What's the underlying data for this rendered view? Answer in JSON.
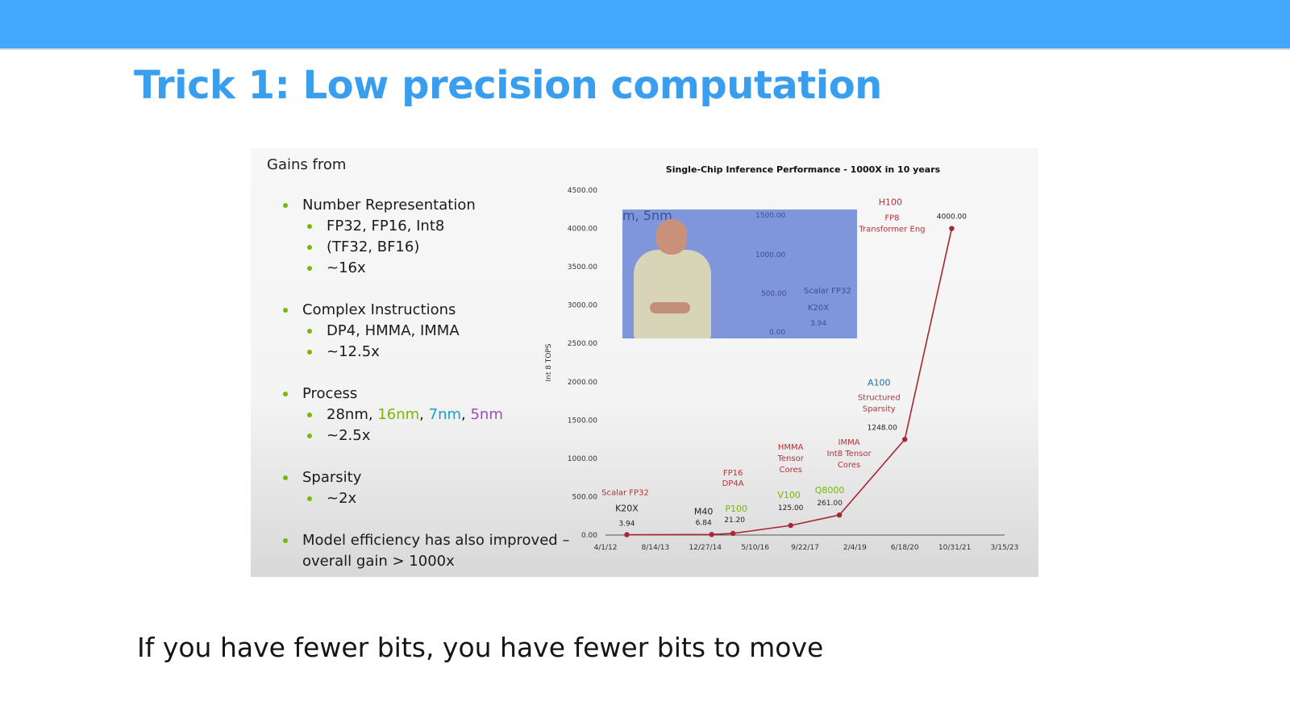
{
  "slide": {
    "title": "Trick 1: Low precision computation",
    "caption": "If you have fewer bits, you have fewer bits to move"
  },
  "colors": {
    "header_bar": "#42a7fd",
    "title": "#3a9eef",
    "bullet": "#76b900",
    "line": "#a8262f",
    "red_label": "#b7313a",
    "green_label": "#76b900",
    "blue_label": "#1f6ea6"
  },
  "panel": {
    "heading": "Gains from",
    "groups": [
      {
        "label": "Number Representation",
        "items": [
          "FP32, FP16, Int8",
          "(TF32, BF16)",
          "~16x"
        ]
      },
      {
        "label": "Complex Instructions",
        "items": [
          "DP4, HMMA, IMMA",
          "~12.5x"
        ]
      },
      {
        "label": "Process",
        "items": [
          "28nm, 16nm, 7nm, 5nm",
          "~2.5x"
        ]
      },
      {
        "label": "Sparsity",
        "items": [
          "~2x"
        ]
      },
      {
        "label": "Model efficiency has also improved –",
        "label2": "overall gain > 1000x",
        "items": []
      }
    ],
    "process_parts": [
      "28nm",
      "16nm",
      "7nm",
      "5nm"
    ]
  },
  "video": {
    "frag_text": "m, 5nm",
    "ticks": [
      "1500.00",
      "1000.00",
      "500.00",
      "0.00"
    ],
    "label_a": "Scalar FP32",
    "label_b": "K20X",
    "label_c": "3.94"
  },
  "chart_data": {
    "type": "line",
    "title": "Single-Chip Inference Performance - 1000X in 10 years",
    "ylabel": "Int 8 TOPS",
    "xlabel": "",
    "ylim": [
      0,
      4500
    ],
    "yticks": [
      "0.00",
      "500.00",
      "1000.00",
      "1500.00",
      "2000.00",
      "2500.00",
      "3000.00",
      "3500.00",
      "4000.00",
      "4500.00"
    ],
    "xticks": [
      "4/1/12",
      "8/14/13",
      "12/27/14",
      "5/10/16",
      "9/22/17",
      "2/4/19",
      "6/18/20",
      "10/31/21",
      "3/15/23"
    ],
    "points": [
      {
        "x": "11/1/12",
        "y": 3.94,
        "value_label": "3.94",
        "chip": "K20X",
        "feature": "Scalar FP32"
      },
      {
        "x": "3/1/15",
        "y": 6.84,
        "value_label": "6.84",
        "chip": "M40",
        "feature": ""
      },
      {
        "x": "10/1/15",
        "y": 21.2,
        "value_label": "21.20",
        "chip": "P100",
        "feature": "FP16 DP4A"
      },
      {
        "x": "5/1/17",
        "y": 125.0,
        "value_label": "125.00",
        "chip": "V100",
        "feature": "HMMA Tensor Cores"
      },
      {
        "x": "9/1/18",
        "y": 261.0,
        "value_label": "261.00",
        "chip": "Q8000",
        "feature": "IMMA Int8 Tensor Cores"
      },
      {
        "x": "6/18/20",
        "y": 1248.0,
        "value_label": "1248.00",
        "chip": "A100",
        "feature": "Structured Sparsity"
      },
      {
        "x": "10/1/21",
        "y": 4000.0,
        "value_label": "4000.00",
        "chip": "H100",
        "feature": "FP8 Transformer Eng"
      }
    ],
    "grid": false,
    "legend": "none"
  }
}
